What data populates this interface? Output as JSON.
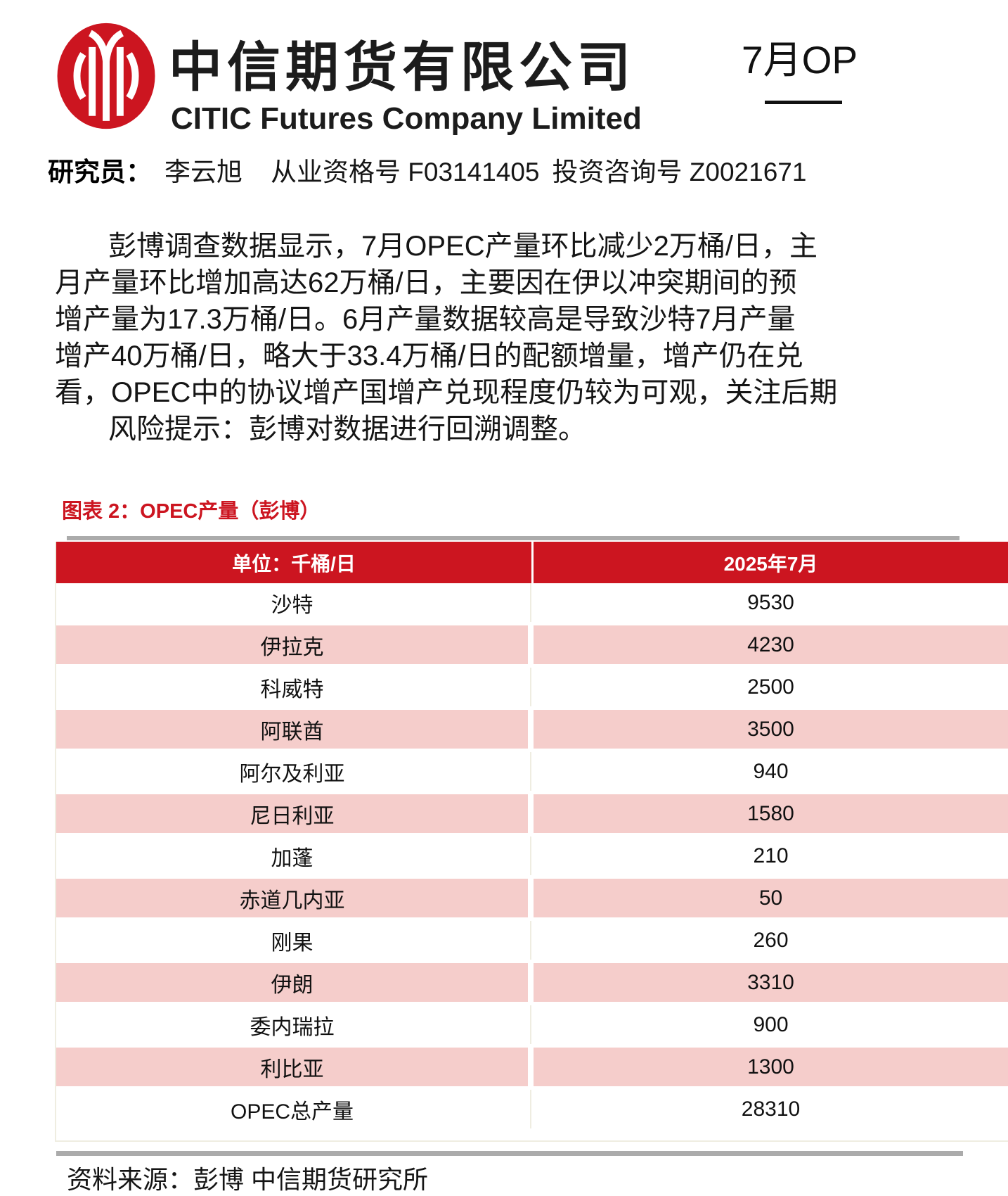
{
  "header": {
    "logo_name": "citic-logo",
    "company_cn": "中信期货有限公司",
    "company_en": "CITIC Futures Company Limited",
    "doc_title_partial": "7月OP"
  },
  "researcher": {
    "label": "研究员：",
    "name": "李云旭",
    "qualification": "从业资格号 F03141405",
    "advisory": "投资咨询号 Z0021671"
  },
  "body": {
    "paragraph_lines": [
      "彭博调查数据显示，7月OPEC产量环比减少2万桶/日，主",
      "月产量环比增加高达62万桶/日，主要因在伊以冲突期间的预",
      "增产量为17.3万桶/日。6月产量数据较高是导致沙特7月产量",
      "增产40万桶/日，略大于33.4万桶/日的配额增量，增产仍在兑",
      "看，OPEC中的协议增产国增产兑现程度仍较为可观，关注后期"
    ],
    "risk_line": "风险提示：彭博对数据进行回溯调整。"
  },
  "table": {
    "caption": "图表 2：OPEC产量（彭博）",
    "col_unit": "单位：千桶/日",
    "col_period": "2025年7月",
    "rows": [
      {
        "name": "沙特",
        "value": "9530"
      },
      {
        "name": "伊拉克",
        "value": "4230"
      },
      {
        "name": "科威特",
        "value": "2500"
      },
      {
        "name": "阿联酋",
        "value": "3500"
      },
      {
        "name": "阿尔及利亚",
        "value": "940"
      },
      {
        "name": "尼日利亚",
        "value": "1580"
      },
      {
        "name": "加蓬",
        "value": "210"
      },
      {
        "name": "赤道几内亚",
        "value": "50"
      },
      {
        "name": "刚果",
        "value": "260"
      },
      {
        "name": "伊朗",
        "value": "3310"
      },
      {
        "name": "委内瑞拉",
        "value": "900"
      },
      {
        "name": "利比亚",
        "value": "1300"
      },
      {
        "name": "OPEC总产量",
        "value": "28310"
      }
    ],
    "source": "资料来源：彭博 中信期货研究所"
  },
  "colors": {
    "brand_red": "#cc1520",
    "row_pink": "#f5cdcb",
    "bar_gray": "#ababab"
  }
}
